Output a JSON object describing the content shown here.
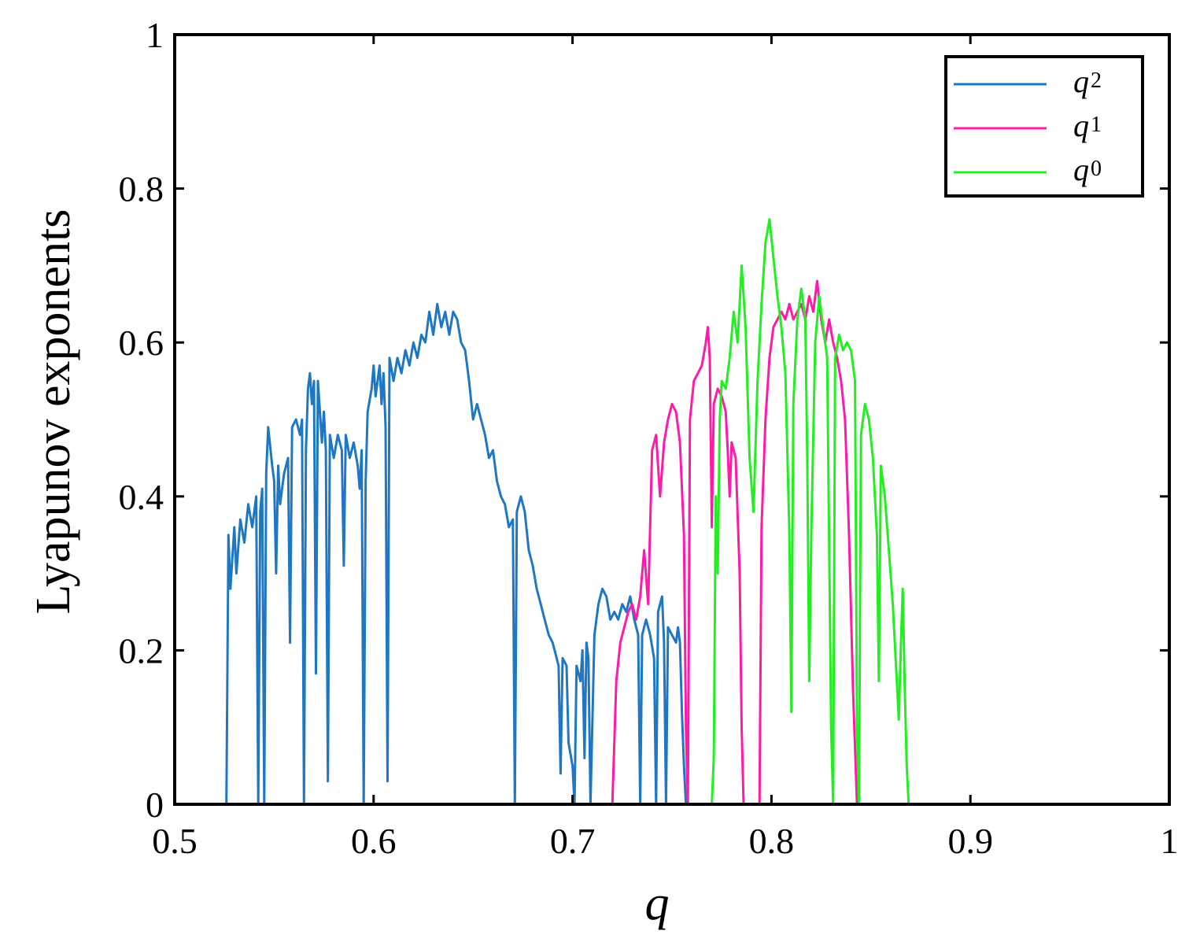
{
  "chart_data": {
    "type": "line",
    "title": "",
    "xlabel": "q",
    "ylabel": "Lyapunov exponents",
    "xlim": [
      0.5,
      1
    ],
    "ylim": [
      0,
      1
    ],
    "x_ticks": [
      "0.5",
      "0.6",
      "0.7",
      "0.8",
      "0.9",
      "1"
    ],
    "y_ticks": [
      "0",
      "0.2",
      "0.4",
      "0.6",
      "0.8",
      "1"
    ],
    "grid": false,
    "legend_position": "top-right",
    "series": [
      {
        "name": "q2",
        "name_base": "q",
        "name_sub": "2",
        "color": "#1f77c4",
        "points": [
          [
            0.5,
            0
          ],
          [
            0.526,
            0
          ],
          [
            0.527,
            0.35
          ],
          [
            0.528,
            0.28
          ],
          [
            0.53,
            0.36
          ],
          [
            0.531,
            0.3
          ],
          [
            0.533,
            0.37
          ],
          [
            0.535,
            0.34
          ],
          [
            0.537,
            0.39
          ],
          [
            0.539,
            0.36
          ],
          [
            0.541,
            0.4
          ],
          [
            0.542,
            0
          ],
          [
            0.543,
            0.38
          ],
          [
            0.544,
            0.41
          ],
          [
            0.545,
            0
          ],
          [
            0.546,
            0.43
          ],
          [
            0.547,
            0.49
          ],
          [
            0.549,
            0.44
          ],
          [
            0.55,
            0.42
          ],
          [
            0.551,
            0.3
          ],
          [
            0.552,
            0.44
          ],
          [
            0.553,
            0.39
          ],
          [
            0.555,
            0.43
          ],
          [
            0.557,
            0.45
          ],
          [
            0.558,
            0.21
          ],
          [
            0.559,
            0.49
          ],
          [
            0.561,
            0.5
          ],
          [
            0.563,
            0.48
          ],
          [
            0.564,
            0.5
          ],
          [
            0.565,
            0
          ],
          [
            0.566,
            0.46
          ],
          [
            0.567,
            0.54
          ],
          [
            0.568,
            0.56
          ],
          [
            0.569,
            0.52
          ],
          [
            0.57,
            0.55
          ],
          [
            0.571,
            0.17
          ],
          [
            0.572,
            0.55
          ],
          [
            0.574,
            0.47
          ],
          [
            0.575,
            0.51
          ],
          [
            0.576,
            0.46
          ],
          [
            0.577,
            0.03
          ],
          [
            0.578,
            0.48
          ],
          [
            0.58,
            0.45
          ],
          [
            0.582,
            0.48
          ],
          [
            0.584,
            0.46
          ],
          [
            0.585,
            0.31
          ],
          [
            0.586,
            0.48
          ],
          [
            0.588,
            0.45
          ],
          [
            0.59,
            0.47
          ],
          [
            0.592,
            0.44
          ],
          [
            0.593,
            0.41
          ],
          [
            0.594,
            0.46
          ],
          [
            0.595,
            0
          ],
          [
            0.596,
            0.42
          ],
          [
            0.597,
            0.51
          ],
          [
            0.599,
            0.54
          ],
          [
            0.6,
            0.57
          ],
          [
            0.601,
            0.53
          ],
          [
            0.603,
            0.57
          ],
          [
            0.604,
            0.52
          ],
          [
            0.605,
            0.56
          ],
          [
            0.606,
            0.49
          ],
          [
            0.607,
            0.03
          ],
          [
            0.608,
            0.58
          ],
          [
            0.61,
            0.55
          ],
          [
            0.612,
            0.58
          ],
          [
            0.614,
            0.56
          ],
          [
            0.616,
            0.59
          ],
          [
            0.618,
            0.57
          ],
          [
            0.62,
            0.6
          ],
          [
            0.622,
            0.58
          ],
          [
            0.624,
            0.61
          ],
          [
            0.626,
            0.6
          ],
          [
            0.628,
            0.64
          ],
          [
            0.63,
            0.61
          ],
          [
            0.632,
            0.65
          ],
          [
            0.634,
            0.62
          ],
          [
            0.636,
            0.64
          ],
          [
            0.638,
            0.61
          ],
          [
            0.64,
            0.64
          ],
          [
            0.642,
            0.63
          ],
          [
            0.644,
            0.6
          ],
          [
            0.646,
            0.59
          ],
          [
            0.648,
            0.55
          ],
          [
            0.65,
            0.5
          ],
          [
            0.652,
            0.52
          ],
          [
            0.654,
            0.5
          ],
          [
            0.656,
            0.48
          ],
          [
            0.658,
            0.45
          ],
          [
            0.66,
            0.46
          ],
          [
            0.662,
            0.42
          ],
          [
            0.664,
            0.4
          ],
          [
            0.666,
            0.39
          ],
          [
            0.668,
            0.36
          ],
          [
            0.67,
            0.37
          ],
          [
            0.671,
            0
          ],
          [
            0.672,
            0.38
          ],
          [
            0.674,
            0.4
          ],
          [
            0.676,
            0.38
          ],
          [
            0.678,
            0.33
          ],
          [
            0.68,
            0.31
          ],
          [
            0.682,
            0.28
          ],
          [
            0.684,
            0.26
          ],
          [
            0.686,
            0.24
          ],
          [
            0.688,
            0.22
          ],
          [
            0.69,
            0.21
          ],
          [
            0.692,
            0.19
          ],
          [
            0.693,
            0.18
          ],
          [
            0.694,
            0.04
          ],
          [
            0.695,
            0.19
          ],
          [
            0.697,
            0.18
          ],
          [
            0.698,
            0.08
          ],
          [
            0.7,
            0.05
          ],
          [
            0.701,
            0
          ],
          [
            0.702,
            0.18
          ],
          [
            0.704,
            0.16
          ],
          [
            0.705,
            0.2
          ],
          [
            0.706,
            0.06
          ],
          [
            0.707,
            0.21
          ],
          [
            0.708,
            0.19
          ],
          [
            0.709,
            0
          ],
          [
            0.711,
            0.22
          ],
          [
            0.712,
            0.24
          ],
          [
            0.713,
            0.26
          ],
          [
            0.715,
            0.28
          ],
          [
            0.717,
            0.27
          ],
          [
            0.719,
            0.24
          ],
          [
            0.721,
            0.25
          ],
          [
            0.723,
            0.24
          ],
          [
            0.725,
            0.26
          ],
          [
            0.727,
            0.25
          ],
          [
            0.729,
            0.27
          ],
          [
            0.731,
            0.24
          ],
          [
            0.733,
            0.22
          ],
          [
            0.734,
            0
          ],
          [
            0.735,
            0.22
          ],
          [
            0.737,
            0.24
          ],
          [
            0.739,
            0.22
          ],
          [
            0.741,
            0.19
          ],
          [
            0.742,
            0
          ],
          [
            0.743,
            0.25
          ],
          [
            0.745,
            0.27
          ],
          [
            0.746,
            0.21
          ],
          [
            0.747,
            0
          ],
          [
            0.748,
            0.23
          ],
          [
            0.75,
            0.22
          ],
          [
            0.752,
            0.21
          ],
          [
            0.753,
            0.23
          ],
          [
            0.754,
            0.21
          ],
          [
            0.755,
            0.12
          ],
          [
            0.756,
            0.05
          ],
          [
            0.757,
            0
          ],
          [
            1.0,
            0
          ]
        ]
      },
      {
        "name": "q1",
        "name_base": "q",
        "name_sub": "1",
        "color": "#ff1aa8",
        "points": [
          [
            0.5,
            0
          ],
          [
            0.72,
            0
          ],
          [
            0.722,
            0.16
          ],
          [
            0.724,
            0.21
          ],
          [
            0.726,
            0.23
          ],
          [
            0.728,
            0.25
          ],
          [
            0.73,
            0.26
          ],
          [
            0.732,
            0.24
          ],
          [
            0.734,
            0.27
          ],
          [
            0.736,
            0.33
          ],
          [
            0.738,
            0.26
          ],
          [
            0.74,
            0.46
          ],
          [
            0.742,
            0.48
          ],
          [
            0.744,
            0.4
          ],
          [
            0.746,
            0.47
          ],
          [
            0.748,
            0.5
          ],
          [
            0.75,
            0.52
          ],
          [
            0.752,
            0.51
          ],
          [
            0.754,
            0.47
          ],
          [
            0.756,
            0.35
          ],
          [
            0.757,
            0.1
          ],
          [
            0.758,
            0
          ],
          [
            0.759,
            0.5
          ],
          [
            0.761,
            0.55
          ],
          [
            0.763,
            0.56
          ],
          [
            0.765,
            0.57
          ],
          [
            0.767,
            0.6
          ],
          [
            0.768,
            0.62
          ],
          [
            0.769,
            0.58
          ],
          [
            0.77,
            0.36
          ],
          [
            0.771,
            0.52
          ],
          [
            0.773,
            0.54
          ],
          [
            0.775,
            0.53
          ],
          [
            0.777,
            0.51
          ],
          [
            0.778,
            0.46
          ],
          [
            0.779,
            0.4
          ],
          [
            0.78,
            0.47
          ],
          [
            0.782,
            0.45
          ],
          [
            0.784,
            0.3
          ],
          [
            0.785,
            0.1
          ],
          [
            0.786,
            0
          ],
          [
            0.794,
            0
          ],
          [
            0.795,
            0.36
          ],
          [
            0.797,
            0.5
          ],
          [
            0.799,
            0.58
          ],
          [
            0.801,
            0.62
          ],
          [
            0.803,
            0.63
          ],
          [
            0.805,
            0.64
          ],
          [
            0.807,
            0.63
          ],
          [
            0.809,
            0.65
          ],
          [
            0.811,
            0.63
          ],
          [
            0.813,
            0.64
          ],
          [
            0.815,
            0.65
          ],
          [
            0.817,
            0.63
          ],
          [
            0.819,
            0.66
          ],
          [
            0.821,
            0.64
          ],
          [
            0.823,
            0.68
          ],
          [
            0.825,
            0.63
          ],
          [
            0.827,
            0.6
          ],
          [
            0.829,
            0.63
          ],
          [
            0.831,
            0.6
          ],
          [
            0.833,
            0.58
          ],
          [
            0.835,
            0.55
          ],
          [
            0.837,
            0.5
          ],
          [
            0.839,
            0.35
          ],
          [
            0.841,
            0.15
          ],
          [
            0.843,
            0
          ],
          [
            1.0,
            0
          ]
        ]
      },
      {
        "name": "q0",
        "name_base": "q",
        "name_sub": "0",
        "color": "#22ee22",
        "points": [
          [
            0.5,
            0
          ],
          [
            0.77,
            0
          ],
          [
            0.771,
            0.06
          ],
          [
            0.772,
            0.4
          ],
          [
            0.773,
            0.3
          ],
          [
            0.774,
            0.5
          ],
          [
            0.775,
            0.55
          ],
          [
            0.777,
            0.54
          ],
          [
            0.779,
            0.58
          ],
          [
            0.781,
            0.64
          ],
          [
            0.783,
            0.6
          ],
          [
            0.785,
            0.7
          ],
          [
            0.787,
            0.62
          ],
          [
            0.789,
            0.45
          ],
          [
            0.791,
            0.38
          ],
          [
            0.793,
            0.55
          ],
          [
            0.795,
            0.65
          ],
          [
            0.797,
            0.73
          ],
          [
            0.799,
            0.76
          ],
          [
            0.801,
            0.71
          ],
          [
            0.803,
            0.66
          ],
          [
            0.805,
            0.62
          ],
          [
            0.807,
            0.56
          ],
          [
            0.809,
            0.35
          ],
          [
            0.81,
            0.12
          ],
          [
            0.811,
            0.52
          ],
          [
            0.813,
            0.63
          ],
          [
            0.815,
            0.67
          ],
          [
            0.817,
            0.63
          ],
          [
            0.818,
            0.45
          ],
          [
            0.819,
            0.16
          ],
          [
            0.82,
            0.35
          ],
          [
            0.822,
            0.6
          ],
          [
            0.824,
            0.66
          ],
          [
            0.826,
            0.62
          ],
          [
            0.828,
            0.58
          ],
          [
            0.83,
            0.1
          ],
          [
            0.831,
            0
          ],
          [
            0.832,
            0.58
          ],
          [
            0.834,
            0.61
          ],
          [
            0.836,
            0.59
          ],
          [
            0.838,
            0.6
          ],
          [
            0.84,
            0.59
          ],
          [
            0.842,
            0.55
          ],
          [
            0.843,
            0.1
          ],
          [
            0.844,
            0
          ],
          [
            0.845,
            0.48
          ],
          [
            0.847,
            0.52
          ],
          [
            0.849,
            0.5
          ],
          [
            0.851,
            0.45
          ],
          [
            0.853,
            0.35
          ],
          [
            0.854,
            0.16
          ],
          [
            0.855,
            0.44
          ],
          [
            0.857,
            0.4
          ],
          [
            0.859,
            0.33
          ],
          [
            0.861,
            0.26
          ],
          [
            0.863,
            0.16
          ],
          [
            0.864,
            0.11
          ],
          [
            0.865,
            0.2
          ],
          [
            0.866,
            0.28
          ],
          [
            0.867,
            0.15
          ],
          [
            0.868,
            0.05
          ],
          [
            0.869,
            0
          ],
          [
            1.0,
            0
          ]
        ]
      }
    ]
  }
}
